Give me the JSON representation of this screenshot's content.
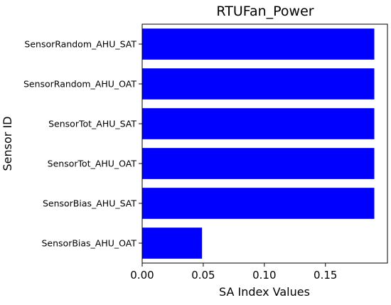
{
  "chart_data": {
    "type": "bar",
    "orientation": "horizontal",
    "title": "RTUFan_Power",
    "xlabel": "SA Index Values",
    "ylabel": "Sensor ID",
    "categories": [
      "SensorRandom_AHU_SAT",
      "SensorRandom_AHU_OAT",
      "SensorTot_AHU_SAT",
      "SensorTot_AHU_OAT",
      "SensorBias_AHU_SAT",
      "SensorBias_AHU_OAT"
    ],
    "values": [
      0.19,
      0.19,
      0.19,
      0.19,
      0.19,
      0.049
    ],
    "xlim": [
      0,
      0.2
    ],
    "xticks": [
      0.0,
      0.05,
      0.1,
      0.15
    ],
    "xtick_labels": [
      "0.00",
      "0.05",
      "0.10",
      "0.15"
    ],
    "bar_color": "#0000ff",
    "grid": false,
    "legend": "none"
  }
}
